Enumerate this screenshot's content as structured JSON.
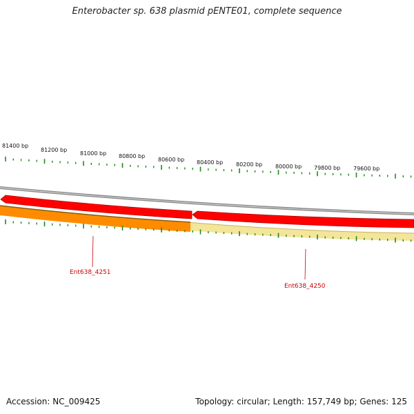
{
  "title": "Enterobacter sp. 638 plasmid pENTE01, complete sequence",
  "footer": {
    "accession": "Accession: NC_009425",
    "summary": "Topology: circular; Length: 157,749 bp; Genes: 125"
  },
  "scale_labels": [
    "81400 bp",
    "81200 bp",
    "81000 bp",
    "80800 bp",
    "80600 bp",
    "80400 bp",
    "80200 bp",
    "80000 bp",
    "79800 bp",
    "79600 bp"
  ],
  "genes": [
    {
      "name": "Ent638_4251",
      "strand": "minus",
      "color": "#ff0000"
    },
    {
      "name": "Ent638_4250",
      "strand": "minus",
      "color": "#ff0000"
    }
  ],
  "colors": {
    "backbone": "#8a8a8a",
    "gene": "#ff0000",
    "feature_orange": "#ff8c00",
    "feature_yellow": "#f3e59a",
    "ticks": "#1a8a1a",
    "gene_label": "#cc0000"
  }
}
